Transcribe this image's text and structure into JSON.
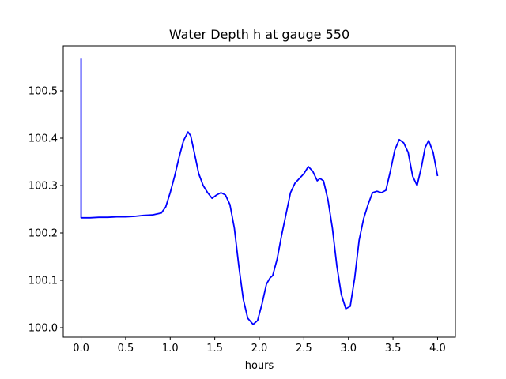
{
  "chart_data": {
    "type": "line",
    "title": "Water Depth h at gauge 550",
    "xlabel": "hours",
    "ylabel": "",
    "xlim": [
      -0.2,
      4.2
    ],
    "ylim": [
      99.98,
      100.595
    ],
    "grid": false,
    "line_color": "#0000ff",
    "xticks": [
      0.0,
      0.5,
      1.0,
      1.5,
      2.0,
      2.5,
      3.0,
      3.5,
      4.0
    ],
    "xtick_labels": [
      "0.0",
      "0.5",
      "1.0",
      "1.5",
      "2.0",
      "2.5",
      "3.0",
      "3.5",
      "4.0"
    ],
    "yticks": [
      100.0,
      100.1,
      100.2,
      100.3,
      100.4,
      100.5
    ],
    "ytick_labels": [
      "100.0",
      "100.1",
      "100.2",
      "100.3",
      "100.4",
      "100.5"
    ],
    "series": [
      {
        "x": [
          0.0,
          0.0,
          0.0,
          0.1,
          0.2,
          0.3,
          0.4,
          0.5,
          0.6,
          0.7,
          0.8,
          0.9,
          0.95,
          1.0,
          1.05,
          1.1,
          1.15,
          1.2,
          1.23,
          1.27,
          1.32,
          1.37,
          1.42,
          1.47,
          1.52,
          1.57,
          1.62,
          1.67,
          1.72,
          1.77,
          1.82,
          1.87,
          1.93,
          1.98,
          2.03,
          2.08,
          2.12,
          2.15,
          2.2,
          2.25,
          2.3,
          2.35,
          2.4,
          2.45,
          2.5,
          2.55,
          2.6,
          2.65,
          2.68,
          2.72,
          2.77,
          2.82,
          2.87,
          2.92,
          2.97,
          3.02,
          3.07,
          3.12,
          3.17,
          3.22,
          3.27,
          3.32,
          3.37,
          3.42,
          3.47,
          3.52,
          3.57,
          3.62,
          3.67,
          3.72,
          3.77,
          3.82,
          3.86,
          3.9,
          3.95,
          4.0
        ],
        "y": [
          100.568,
          100.232,
          100.232,
          100.232,
          100.233,
          100.233,
          100.234,
          100.234,
          100.235,
          100.237,
          100.238,
          100.242,
          100.255,
          100.285,
          100.32,
          100.36,
          100.395,
          100.413,
          100.405,
          100.37,
          100.325,
          100.3,
          100.285,
          100.273,
          100.28,
          100.285,
          100.28,
          100.26,
          100.21,
          100.13,
          100.06,
          100.02,
          100.007,
          100.015,
          100.05,
          100.092,
          100.105,
          100.11,
          100.145,
          100.195,
          100.24,
          100.285,
          100.305,
          100.315,
          100.325,
          100.34,
          100.33,
          100.31,
          100.315,
          100.31,
          100.27,
          100.21,
          100.13,
          100.07,
          100.04,
          100.045,
          100.105,
          100.185,
          100.23,
          100.26,
          100.285,
          100.288,
          100.285,
          100.29,
          100.33,
          100.375,
          100.397,
          100.39,
          100.37,
          100.32,
          100.3,
          100.34,
          100.38,
          100.395,
          100.37,
          100.32
        ]
      }
    ]
  }
}
